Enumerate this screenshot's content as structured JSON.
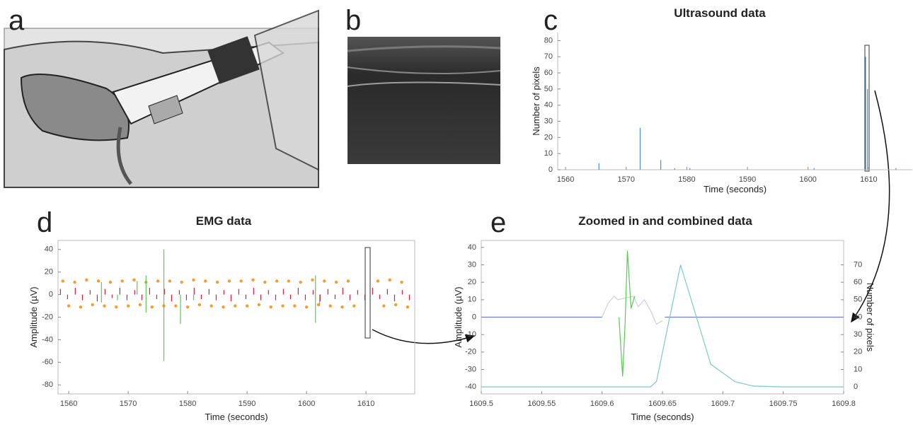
{
  "panel_labels": [
    "a",
    "b",
    "c",
    "d",
    "e"
  ],
  "chart_data": [
    {
      "type": "bar",
      "title": "Ultrasound data",
      "x_label": "Time (seconds)",
      "y_label": "Number of pixels",
      "xlim": [
        1558.7,
        1617.2
      ],
      "ylim": [
        0,
        85
      ],
      "xticks": [
        1560,
        1570,
        1580,
        1590,
        1600,
        1610
      ],
      "yticks": [
        0,
        10,
        20,
        30,
        40,
        50,
        60,
        70,
        80
      ],
      "box": false,
      "series": [
        {
          "color": "#4a90d9",
          "x": [
            1565.5,
            1572.3,
            1575.7,
            1578,
            1580.5,
            1601,
            1609.5,
            1609.8,
            1614.5
          ],
          "values": [
            4,
            26,
            6,
            1,
            1,
            1,
            70,
            50,
            1
          ]
        }
      ]
    },
    {
      "type": "scatter",
      "title": "EMG data",
      "x_label": "Time (seconds)",
      "y_label": "Amplitude (µV)",
      "xlim": [
        1558.2,
        1618.2
      ],
      "ylim": [
        -88,
        48
      ],
      "xticks": [
        1560,
        1570,
        1580,
        1590,
        1600,
        1610
      ],
      "yticks": [
        -80,
        -60,
        -40,
        -20,
        0,
        20,
        40
      ],
      "box": true,
      "series": [
        {
          "mode": "spikes",
          "color": "#d62040",
          "x": [
            1558.6,
            1559.8,
            1561.1,
            1562.3,
            1563.6,
            1564.8,
            1566.1,
            1567.3,
            1568.6,
            1569.8,
            1571.1,
            1572.3,
            1573.6,
            1574.8,
            1576.1,
            1577.3,
            1578.6,
            1579.8,
            1581.1,
            1582.3,
            1583.6,
            1584.8,
            1586.1,
            1587.3,
            1588.6,
            1589.8,
            1591.1,
            1592.3,
            1593.6,
            1594.8,
            1596.1,
            1597.3,
            1598.6,
            1599.8,
            1601.1,
            1602.3,
            1603.6,
            1604.8,
            1606.1,
            1607.3,
            1608.6,
            1609.8,
            1611.1,
            1612.3,
            1613.6,
            1614.8,
            1616.1,
            1617.3
          ],
          "values": [
            5,
            -4,
            6,
            -5,
            4,
            -6,
            5,
            -3,
            6,
            -5,
            4,
            -5,
            6,
            -4,
            5,
            -6,
            4,
            -5,
            6,
            -4,
            5,
            -5,
            4,
            -6,
            5,
            -4,
            6,
            -5,
            4,
            -5,
            5,
            -4,
            6,
            -5,
            4,
            -6,
            5,
            -4,
            6,
            -5,
            4,
            -5,
            6,
            -4,
            5,
            -6,
            4,
            -5
          ]
        },
        {
          "mode": "points",
          "color": "#f0a030",
          "x": [
            1559,
            1561,
            1563,
            1565,
            1567,
            1569,
            1571,
            1573,
            1575,
            1577,
            1579,
            1581,
            1583,
            1585,
            1587,
            1589,
            1591,
            1593,
            1595,
            1597,
            1599,
            1601,
            1603,
            1605,
            1607,
            1612,
            1614,
            1616
          ],
          "values": [
            12,
            11,
            13,
            12,
            11,
            12,
            13,
            11,
            12,
            12,
            11,
            13,
            12,
            11,
            12,
            12,
            13,
            11,
            12,
            12,
            11,
            13,
            12,
            11,
            12,
            12,
            13,
            11
          ]
        },
        {
          "mode": "points",
          "color": "#f0a030",
          "x": [
            1560,
            1562,
            1564,
            1566,
            1568,
            1570,
            1572,
            1574,
            1576,
            1578,
            1580,
            1582,
            1584,
            1586,
            1588,
            1590,
            1592,
            1594,
            1596,
            1598,
            1600,
            1602,
            1604,
            1606,
            1608,
            1613,
            1615,
            1617
          ],
          "values": [
            -10,
            -11,
            -9,
            -10,
            -11,
            -10,
            -9,
            -11,
            -10,
            -10,
            -11,
            -9,
            -10,
            -11,
            -10,
            -10,
            -9,
            -11,
            -10,
            -10,
            -11,
            -9,
            -10,
            -11,
            -10,
            -10,
            -9,
            -11
          ]
        },
        {
          "mode": "spikes",
          "color": "#5cc85c",
          "x": [
            1565.5,
            1565.5,
            1568.2,
            1571.5,
            1573,
            1573,
            1576,
            1576,
            1578.8,
            1581,
            1601.5,
            1601.5,
            1602.2
          ],
          "values": [
            11,
            -7,
            -5,
            12,
            17,
            -16,
            40,
            -59,
            -26,
            -5,
            17,
            -25,
            -10
          ]
        }
      ]
    },
    {
      "type": "line",
      "title": "Zoomed in and combined data",
      "x_label": "Time (seconds)",
      "y_label": "Amplitude (µV)",
      "y2_label": "Number of pixels",
      "xlim": [
        1609.5,
        1609.8
      ],
      "ylim": [
        -44,
        44
      ],
      "y2lim": [
        -4,
        84
      ],
      "xticks": [
        1609.5,
        1609.55,
        1609.6,
        1609.65,
        1609.7,
        1609.75,
        1609.8
      ],
      "yticks": [
        -40,
        -30,
        -20,
        -10,
        0,
        10,
        20,
        30,
        40
      ],
      "y2ticks": [
        0,
        10,
        20,
        30,
        40,
        50,
        60,
        70
      ],
      "box": true,
      "series": [
        {
          "color": "#6b7fd7",
          "x": [
            1609.5,
            1609.6
          ],
          "values": [
            0,
            0
          ]
        },
        {
          "color": "#d0d0d0",
          "x": [
            1609.6,
            1609.605,
            1609.61,
            1609.613,
            1609.626,
            1609.63,
            1609.635,
            1609.64,
            1609.645,
            1609.65
          ],
          "values": [
            0,
            8,
            12,
            10,
            12,
            6,
            10,
            4,
            -4,
            -2
          ]
        },
        {
          "color": "#5cc85c",
          "x": [
            1609.614,
            1609.617,
            1609.619,
            1609.621,
            1609.624,
            1609.627
          ],
          "values": [
            0,
            -34,
            -5,
            38,
            5,
            12
          ]
        },
        {
          "color": "#6b7fd7",
          "x": [
            1609.652,
            1609.8
          ],
          "values": [
            0,
            0
          ]
        },
        {
          "color": "#7fc9c0",
          "axis": "y2",
          "x": [
            1609.5,
            1609.64,
            1609.645,
            1609.665,
            1609.69,
            1609.71,
            1609.725,
            1609.75,
            1609.8
          ],
          "values": [
            0,
            0,
            3,
            70,
            13,
            3,
            0.5,
            0,
            0
          ]
        }
      ]
    }
  ]
}
